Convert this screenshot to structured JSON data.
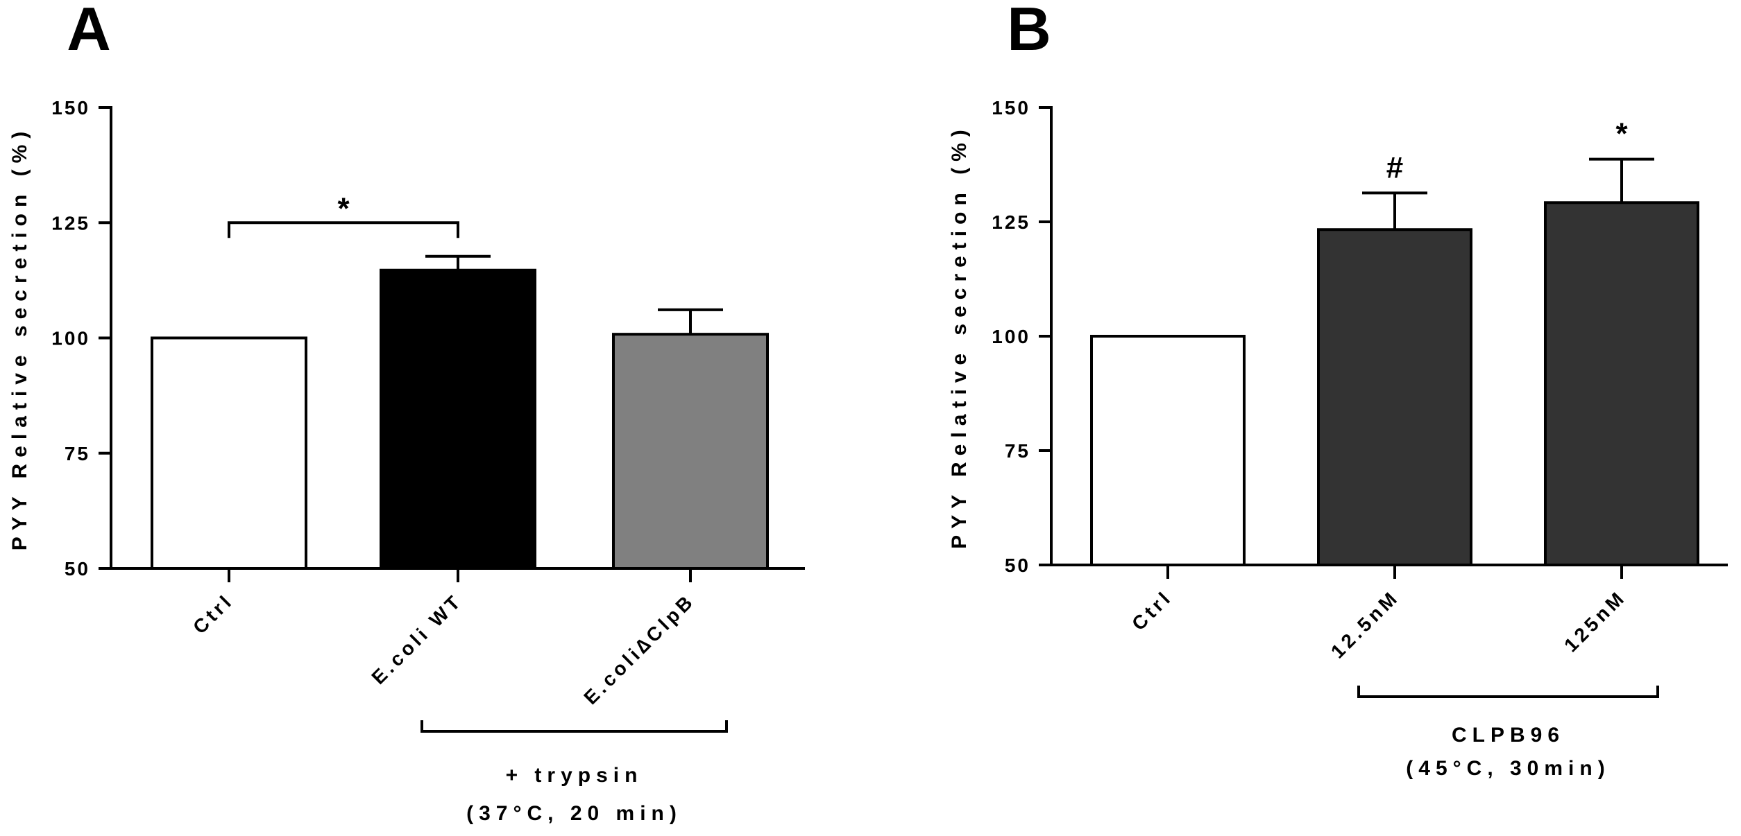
{
  "chart_data": [
    {
      "type": "bar",
      "panel": "A",
      "ylabel": "PYY Relative secretion (%)",
      "ylim": [
        50,
        150
      ],
      "yticks": [
        50,
        75,
        100,
        125,
        150
      ],
      "categories": [
        "Ctrl",
        "E.coli WT",
        "E.coli∆ClpB"
      ],
      "values": [
        100,
        114.7,
        100.8
      ],
      "errors": [
        0,
        3.0,
        5.3
      ],
      "colors": [
        "#ffffff",
        "#000000",
        "#808080"
      ],
      "significance": [
        {
          "from": 0,
          "to": 1,
          "label": "*",
          "y": 125
        }
      ],
      "group_bracket": {
        "from": 1,
        "to": 2,
        "lines": [
          "+ trypsin",
          "(37°C, 20 min)"
        ]
      }
    },
    {
      "type": "bar",
      "panel": "B",
      "ylabel": "PYY Relative secretion (%)",
      "ylim": [
        50,
        150
      ],
      "yticks": [
        50,
        75,
        100,
        125,
        150
      ],
      "categories": [
        "Ctrl",
        "12.5nM",
        "125nM"
      ],
      "values": [
        100,
        123.3,
        129.2
      ],
      "errors": [
        0,
        8.0,
        9.5
      ],
      "colors": [
        "#ffffff",
        "#333333",
        "#333333"
      ],
      "bar_labels": [
        "",
        "#",
        "*"
      ],
      "group_bracket": {
        "from": 1,
        "to": 2,
        "lines": [
          "CLPB96",
          "(45°C, 30min)"
        ]
      }
    }
  ]
}
